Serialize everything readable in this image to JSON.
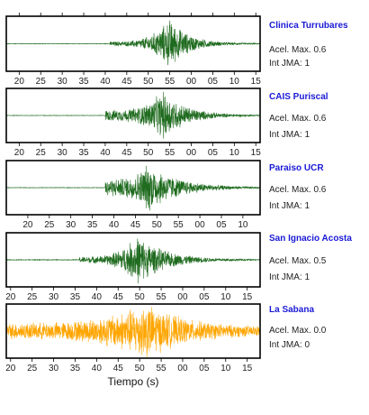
{
  "chart_data": {
    "type": "line",
    "xlabel": "Tiempo (s)",
    "xlabel_note": "time axis in seconds; tick labels wrap at 60 (20..55, 00..15)",
    "panels": [
      {
        "station": "Clinica Turrubares",
        "accel_label": "Acel. Max.",
        "accel_value": "0.6",
        "jma_label": "Int JMA:",
        "jma_value": "1",
        "ticks": [
          "20",
          "25",
          "30",
          "35",
          "40",
          "45",
          "50",
          "55",
          "00",
          "05",
          "10",
          "15"
        ],
        "x_range": [
          17,
          76
        ],
        "top_ticks": true,
        "color": "#1f6b1f",
        "envelope": {
          "start": 41,
          "peak": 55,
          "peak_amp": 1.0,
          "pre_amp": 0.08,
          "decay": 4.5,
          "noise": 0.01
        }
      },
      {
        "station": "CAIS Puriscal",
        "accel_label": "Acel. Max.",
        "accel_value": "0.6",
        "jma_label": "Int JMA:",
        "jma_value": "1",
        "ticks": [
          "20",
          "25",
          "30",
          "35",
          "40",
          "45",
          "50",
          "55",
          "00",
          "05",
          "10",
          "15"
        ],
        "x_range": [
          17,
          76
        ],
        "top_ticks": false,
        "color": "#1f6b1f",
        "envelope": {
          "start": 40,
          "peak": 53.5,
          "peak_amp": 1.0,
          "pre_amp": 0.22,
          "decay": 5.5,
          "noise": 0.01
        }
      },
      {
        "station": "Paraiso UCR",
        "accel_label": "Acel. Max.",
        "accel_value": "0.6",
        "jma_label": "Int JMA:",
        "jma_value": "1",
        "ticks": [
          "20",
          "25",
          "30",
          "35",
          "40",
          "45",
          "50",
          "55",
          "00",
          "05",
          "10"
        ],
        "x_range": [
          15,
          74
        ],
        "top_ticks": false,
        "color": "#1f6b1f",
        "envelope": {
          "start": 38,
          "peak": 48,
          "peak_amp": 1.0,
          "pre_amp": 0.35,
          "decay": 7.0,
          "noise": 0.01
        }
      },
      {
        "station": "San Ignacio Acosta",
        "accel_label": "Acel. Max.",
        "accel_value": "0.5",
        "jma_label": "Int JMA:",
        "jma_value": "1",
        "ticks": [
          "20",
          "25",
          "30",
          "35",
          "40",
          "45",
          "50",
          "55",
          "00",
          "05",
          "10",
          "15"
        ],
        "x_range": [
          19,
          78
        ],
        "top_ticks": false,
        "color": "#1f6b1f",
        "envelope": {
          "start": 36,
          "peak": 49.5,
          "peak_amp": 1.0,
          "pre_amp": 0.12,
          "decay": 6.5,
          "noise": 0.015
        }
      },
      {
        "station": "La Sabana",
        "accel_label": "Acel. Max.",
        "accel_value": "0.0",
        "jma_label": "Int JMA:",
        "jma_value": "0",
        "ticks": [
          "20",
          "25",
          "30",
          "35",
          "40",
          "45",
          "50",
          "55",
          "00",
          "05",
          "10",
          "15"
        ],
        "x_range": [
          19,
          78
        ],
        "top_ticks": false,
        "color": "#ffa500",
        "envelope": {
          "start": 19,
          "peak": 51.5,
          "peak_amp": 1.0,
          "pre_amp": 0.18,
          "decay": 9.0,
          "noise": 0.16
        }
      }
    ]
  }
}
